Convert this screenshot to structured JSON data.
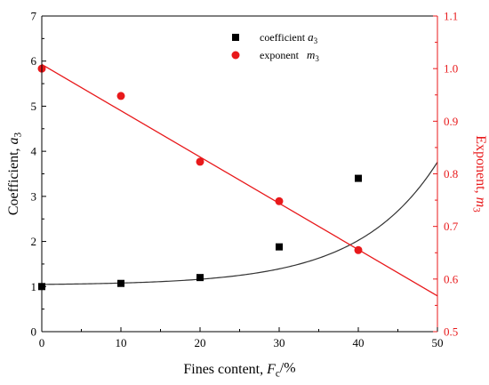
{
  "chart_data": {
    "type": "scatter",
    "x": [
      0,
      10,
      20,
      30,
      40
    ],
    "xlim": [
      0,
      50
    ],
    "xticks": [
      0,
      10,
      20,
      30,
      40,
      50
    ],
    "xlabel": {
      "prefix": "Fines content, ",
      "var": "F",
      "sub": "c",
      "suffix": "/%"
    },
    "y_left": {
      "label": {
        "prefix": "Coefficient, ",
        "var": "a",
        "sub": "3"
      },
      "ylim": [
        0,
        7
      ],
      "ticks": [
        0,
        1,
        2,
        3,
        4,
        5,
        6,
        7
      ],
      "color": "#000000"
    },
    "y_right": {
      "label": {
        "prefix": "Exponent, ",
        "var": "m",
        "sub": "3"
      },
      "ylim": [
        0.5,
        1.1
      ],
      "ticks": [
        0.5,
        0.6,
        0.7,
        0.8,
        0.9,
        1.0,
        1.1
      ],
      "color": "#e8191b"
    },
    "series": [
      {
        "name": {
          "prefix": "coefficient ",
          "var": "a",
          "sub": "3"
        },
        "axis": "left",
        "marker": "square",
        "color": "#000000",
        "values": [
          1.0,
          1.07,
          1.2,
          1.88,
          3.4
        ],
        "fit": {
          "type": "exponential",
          "a": 1.03,
          "b": 0.0175,
          "c": 0.101
        }
      },
      {
        "name": {
          "prefix": "exponent   ",
          "var": "m",
          "sub": "3"
        },
        "axis": "right",
        "marker": "circle",
        "color": "#e8191b",
        "values": [
          1.0,
          0.948,
          0.823,
          0.748,
          0.655
        ],
        "fit": {
          "type": "linear",
          "intercept": 1.008,
          "slope": -0.0088
        }
      }
    ]
  }
}
